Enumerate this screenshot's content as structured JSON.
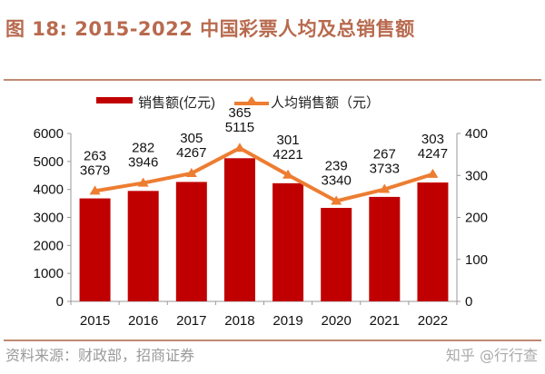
{
  "title": "图 18:  2015-2022 中国彩票人均及总销售额",
  "source": "资料来源：财政部，招商证券",
  "credit": "知乎 @行行查",
  "chart_data": {
    "type": "bar+line",
    "categories": [
      "2015",
      "2016",
      "2017",
      "2018",
      "2019",
      "2020",
      "2021",
      "2022"
    ],
    "series": [
      {
        "name": "销售额(亿元)",
        "type": "bar",
        "axis": "left",
        "color": "#c00000",
        "values": [
          3679,
          3946,
          4267,
          5115,
          4221,
          3340,
          3733,
          4247
        ]
      },
      {
        "name": "人均销售额（元）",
        "type": "line",
        "axis": "right",
        "color": "#ed7d31",
        "values": [
          263,
          282,
          305,
          365,
          301,
          239,
          267,
          303
        ]
      }
    ],
    "y_left": {
      "ylim": [
        0,
        6000
      ],
      "ticks": [
        0,
        1000,
        2000,
        3000,
        4000,
        5000,
        6000
      ]
    },
    "y_right": {
      "ylim": [
        0,
        400
      ],
      "ticks": [
        0,
        100,
        200,
        300,
        400
      ]
    },
    "legend": "top",
    "grid": false
  }
}
